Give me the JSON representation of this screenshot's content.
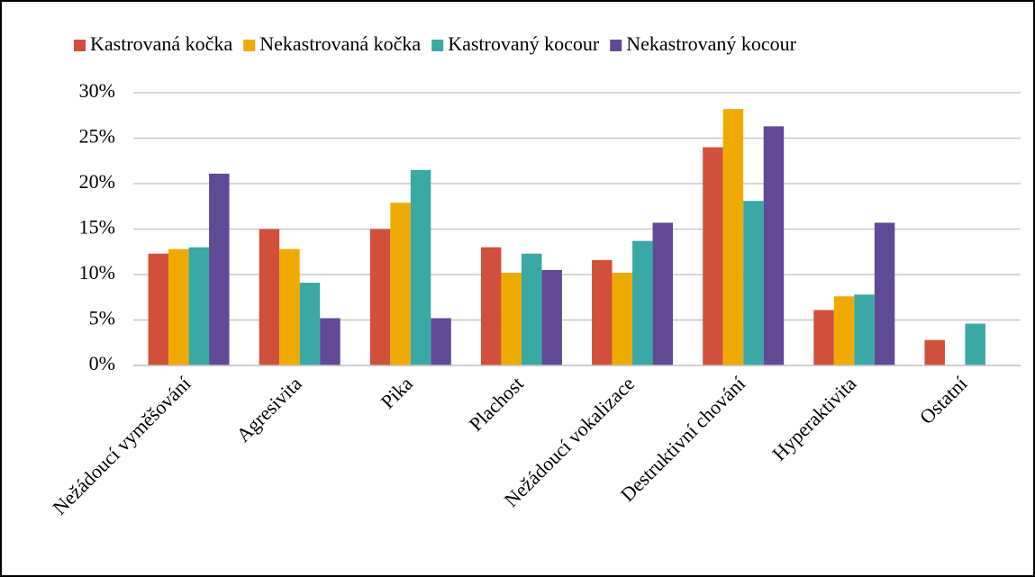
{
  "chart_data": {
    "type": "bar",
    "categories": [
      "Nežádoucí vyměšování",
      "Agresivita",
      "Pika",
      "Plachost",
      "Nežádoucí vokalizace",
      "Destruktivní chování",
      "Hyperaktivita",
      "Ostatní"
    ],
    "series": [
      {
        "name": "Kastrovaná kočka",
        "color": "#d0503c",
        "values": [
          12.3,
          15.0,
          15.0,
          13.0,
          11.6,
          24.0,
          6.1,
          2.8
        ]
      },
      {
        "name": "Nekastrovaná kočka",
        "color": "#efaa00",
        "values": [
          12.8,
          12.8,
          17.9,
          10.2,
          10.2,
          28.2,
          7.6,
          0
        ]
      },
      {
        "name": "Kastrovaný kocour",
        "color": "#3aa8a4",
        "values": [
          13.0,
          9.1,
          21.5,
          12.3,
          13.7,
          18.1,
          7.8,
          4.6
        ]
      },
      {
        "name": "Nekastrovaný kocour",
        "color": "#604a96",
        "values": [
          21.1,
          5.2,
          5.2,
          10.5,
          15.7,
          26.3,
          15.7,
          0
        ]
      }
    ],
    "ylim": [
      0,
      30
    ],
    "yticks": [
      {
        "value": 0,
        "label": "0%"
      },
      {
        "value": 5,
        "label": "5%"
      },
      {
        "value": 10,
        "label": "10%"
      },
      {
        "value": 15,
        "label": "15%"
      },
      {
        "value": 20,
        "label": "20%"
      },
      {
        "value": 25,
        "label": "25%"
      },
      {
        "value": 30,
        "label": "30%"
      }
    ],
    "grid": true,
    "legend": "top"
  }
}
